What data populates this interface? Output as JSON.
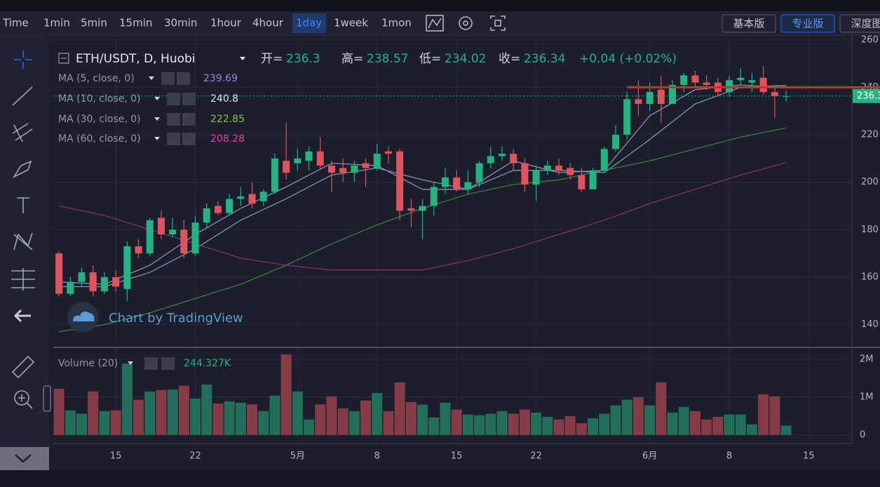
{
  "toolbar": {
    "intervals": [
      "Time",
      "1min",
      "5min",
      "15min",
      "30min",
      "1hour",
      "4hour",
      "1day",
      "1week",
      "1mon"
    ],
    "active_interval": 7,
    "versions": [
      "基本版",
      "专业版",
      "深度图"
    ],
    "active_version": 1
  },
  "chart_data": {
    "type": "candlestick",
    "title": "ETH/USDT, D, Huobi",
    "ohlc_labels": [
      "开=",
      "高=",
      "低=",
      "收="
    ],
    "change": "+0.04 (+0.02%)",
    "watermark": "Chart by TradingView",
    "up_color": "#26b383",
    "down_color": "#e0535c",
    "xlim": [
      -0.5,
      69.8
    ],
    "xticks": [
      {
        "value": 5,
        "label": "15"
      },
      {
        "value": 12,
        "label": "22"
      },
      {
        "value": 21,
        "label": "5月"
      },
      {
        "value": 28,
        "label": "8"
      },
      {
        "value": 35,
        "label": "15"
      },
      {
        "value": 42,
        "label": "22"
      },
      {
        "value": 52,
        "label": "6月"
      },
      {
        "value": 59,
        "label": "8"
      },
      {
        "value": 66,
        "label": "15"
      }
    ],
    "ylim": [
      131,
      262
    ],
    "yticks": [
      140,
      160,
      180,
      200,
      220,
      240,
      260
    ],
    "grid": true,
    "open": [
      170,
      153,
      158,
      162,
      154,
      160,
      155,
      173,
      170,
      185,
      178,
      180,
      170,
      183,
      190,
      187,
      193,
      195,
      192,
      196,
      209,
      208,
      209,
      213,
      207,
      206,
      204,
      208,
      206,
      213,
      213,
      189,
      188,
      190,
      198,
      202,
      197,
      200,
      208,
      211,
      212,
      208,
      199,
      205,
      207,
      206,
      203,
      197,
      205,
      214,
      220,
      235,
      233,
      239,
      233,
      241,
      245,
      242,
      242,
      238,
      243,
      242,
      244,
      238,
      236.3
    ],
    "high": [
      171,
      160,
      164,
      165,
      162,
      163,
      175,
      176,
      185,
      188,
      185,
      184,
      186,
      191,
      192,
      195,
      198,
      200,
      197,
      212,
      225,
      214,
      215,
      219,
      209,
      210,
      209,
      210,
      216,
      215,
      214,
      193,
      193,
      200,
      206,
      205,
      205,
      209,
      215,
      215,
      214,
      210,
      207,
      209,
      210,
      208,
      206,
      206,
      215,
      224,
      238,
      243,
      242,
      245,
      243,
      246,
      247,
      245,
      244,
      245,
      248,
      246,
      249,
      240,
      238.57
    ],
    "low": [
      152,
      152,
      156,
      152,
      153,
      154,
      150,
      168,
      169,
      176,
      177,
      168,
      169,
      181,
      186,
      186,
      190,
      189,
      190,
      195,
      201,
      205,
      205,
      205,
      196,
      200,
      200,
      198,
      205,
      208,
      184,
      181,
      176,
      186,
      195,
      196,
      195,
      198,
      206,
      209,
      205,
      196,
      192,
      203,
      203,
      201,
      196,
      197,
      204,
      213,
      218,
      228,
      230,
      225,
      233,
      238,
      240,
      239,
      236,
      236,
      241,
      238,
      237,
      227,
      234.02
    ],
    "close": [
      153,
      158,
      162,
      154,
      160,
      156,
      173,
      170,
      184,
      178,
      180,
      170,
      183,
      189,
      187,
      193,
      194,
      191,
      196,
      210,
      204,
      210,
      213,
      207,
      204,
      204,
      207,
      206,
      212,
      212,
      188,
      188,
      190,
      198,
      202,
      197,
      200,
      208,
      211,
      212,
      208,
      199,
      205,
      207,
      205,
      203,
      197,
      205,
      214,
      220,
      235,
      233,
      238,
      233,
      241,
      245,
      242,
      241,
      238,
      243,
      244,
      243,
      238,
      236.3,
      236.34
    ],
    "ma": [
      {
        "name": "MA (5, close, 0)",
        "color": "#a57cf0",
        "line_color": "#8a8fb3",
        "x": [
          0,
          4,
          8,
          12,
          16,
          20,
          24,
          28,
          32,
          36,
          40,
          44,
          48,
          52,
          56,
          60,
          64
        ],
        "values": [
          158,
          157,
          165,
          178,
          189,
          198,
          208,
          207,
          197,
          197,
          209,
          204,
          205,
          228,
          239,
          241,
          239.69
        ]
      },
      {
        "name": "MA (10, close, 0)",
        "color": "#d8e3f0",
        "line_color": "#7f93b0",
        "x": [
          0,
          4,
          8,
          12,
          16,
          20,
          24,
          28,
          32,
          36,
          40,
          44,
          48,
          52,
          56,
          60,
          64
        ],
        "values": [
          156,
          156,
          162,
          172,
          184,
          193,
          203,
          206,
          201,
          197,
          205,
          205,
          204,
          218,
          233,
          240,
          240.8
        ]
      },
      {
        "name": "MA (30, close, 0)",
        "color": "#8bc34a",
        "line_color": "#3e7d3e",
        "x": [
          0,
          4,
          8,
          12,
          16,
          20,
          24,
          28,
          32,
          36,
          40,
          44,
          48,
          52,
          56,
          60,
          64
        ],
        "values": [
          137,
          140,
          145,
          151,
          157,
          165,
          174,
          182,
          189,
          195,
          199,
          201,
          205,
          209,
          214,
          219,
          222.85
        ]
      },
      {
        "name": "MA (60, close, 0)",
        "color": "#e040a0",
        "line_color": "#8e2c6e",
        "x": [
          0,
          4,
          8,
          12,
          16,
          20,
          24,
          28,
          32,
          36,
          40,
          44,
          48,
          52,
          56,
          60,
          64
        ],
        "values": [
          190,
          186,
          180,
          174,
          168,
          165,
          163,
          163,
          163,
          167,
          172,
          178,
          184,
          191,
          197,
          203,
          208.28
        ]
      }
    ],
    "volume_title": "Volume (20)",
    "volume": [
      1220000,
      650000,
      560000,
      1150000,
      630000,
      650000,
      1890000,
      930000,
      1150000,
      1190000,
      1200000,
      1300000,
      960000,
      1330000,
      830000,
      890000,
      850000,
      810000,
      630000,
      1040000,
      2130000,
      1150000,
      410000,
      810000,
      1020000,
      700000,
      630000,
      910000,
      1110000,
      630000,
      1390000,
      870000,
      800000,
      460000,
      850000,
      670000,
      540000,
      520000,
      560000,
      630000,
      560000,
      670000,
      590000,
      480000,
      410000,
      500000,
      310000,
      440000,
      560000,
      780000,
      930000,
      1000000,
      780000,
      1390000,
      590000,
      740000,
      630000,
      410000,
      480000,
      540000,
      540000,
      280000,
      1070000,
      1020000,
      244327
    ],
    "volume_value_labels": {
      "64": "244.327K"
    },
    "vlim": [
      -190000,
      2280000
    ],
    "vticks": [
      {
        "value": 0,
        "label": "0"
      },
      {
        "value": 1000000,
        "label": "1M"
      },
      {
        "value": 2000000,
        "label": "2M"
      }
    ]
  }
}
